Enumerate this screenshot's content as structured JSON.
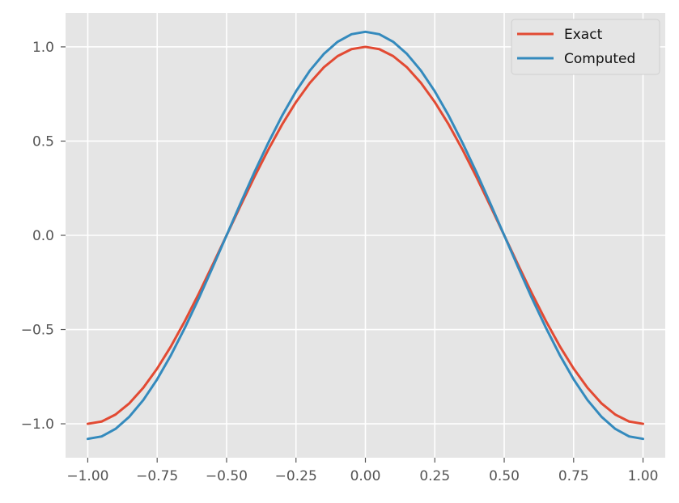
{
  "chart_data": {
    "type": "line",
    "title": "",
    "xlabel": "",
    "ylabel": "",
    "xlim": [
      -1.08,
      1.08
    ],
    "ylim": [
      -1.18,
      1.18
    ],
    "grid": true,
    "legend_position": "top-right",
    "x_ticks": [
      -1.0,
      -0.75,
      -0.5,
      -0.25,
      0.0,
      0.25,
      0.5,
      0.75,
      1.0
    ],
    "y_ticks": [
      -1.0,
      -0.5,
      0.0,
      0.5,
      1.0
    ],
    "x_tick_labels": [
      "−1.00",
      "−0.75",
      "−0.50",
      "−0.25",
      "0.00",
      "0.25",
      "0.50",
      "0.75",
      "1.00"
    ],
    "y_tick_labels": [
      "−1.0",
      "−0.5",
      "0.0",
      "0.5",
      "1.0"
    ],
    "x": [
      -1.0,
      -0.95,
      -0.9,
      -0.85,
      -0.8,
      -0.75,
      -0.7,
      -0.65,
      -0.6,
      -0.55,
      -0.5,
      -0.45,
      -0.4,
      -0.35,
      -0.3,
      -0.25,
      -0.2,
      -0.15,
      -0.1,
      -0.05,
      0.0,
      0.05,
      0.1,
      0.15,
      0.2,
      0.25,
      0.3,
      0.35,
      0.4,
      0.45,
      0.5,
      0.55,
      0.6,
      0.65,
      0.7,
      0.75,
      0.8,
      0.85,
      0.9,
      0.95,
      1.0
    ],
    "series": [
      {
        "name": "Exact",
        "color": "#E24A33",
        "values": [
          -1.0,
          -0.988,
          -0.951,
          -0.891,
          -0.809,
          -0.707,
          -0.588,
          -0.454,
          -0.309,
          -0.156,
          0.0,
          0.156,
          0.309,
          0.454,
          0.588,
          0.707,
          0.809,
          0.891,
          0.951,
          0.988,
          1.0,
          0.988,
          0.951,
          0.891,
          0.809,
          0.707,
          0.588,
          0.454,
          0.309,
          0.156,
          0.0,
          -0.156,
          -0.309,
          -0.454,
          -0.588,
          -0.707,
          -0.809,
          -0.891,
          -0.951,
          -0.988,
          -1.0
        ]
      },
      {
        "name": "Computed",
        "color": "#348ABD",
        "values": [
          -1.08,
          -1.067,
          -1.027,
          -0.962,
          -0.874,
          -0.764,
          -0.635,
          -0.49,
          -0.334,
          -0.169,
          0.0,
          0.169,
          0.334,
          0.49,
          0.635,
          0.764,
          0.874,
          0.962,
          1.027,
          1.067,
          1.08,
          1.067,
          1.027,
          0.962,
          0.874,
          0.764,
          0.635,
          0.49,
          0.334,
          0.169,
          0.0,
          -0.169,
          -0.334,
          -0.49,
          -0.635,
          -0.764,
          -0.874,
          -0.962,
          -1.027,
          -1.067,
          -1.08
        ]
      }
    ]
  }
}
